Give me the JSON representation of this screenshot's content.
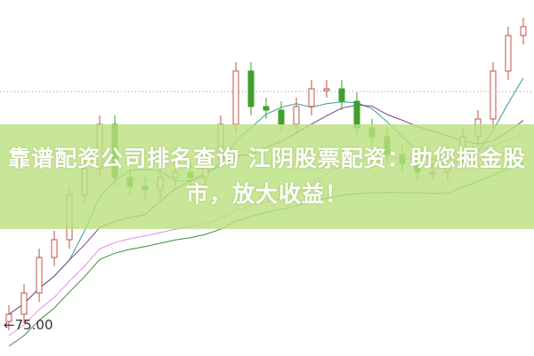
{
  "banner": {
    "title": "靠谱配资公司排名查询 江阴股票配资：助您掘金股市，放大收益！"
  },
  "chart_data": {
    "type": "candlestick",
    "annotations": [
      {
        "text": "←75.00",
        "value": 75.0
      }
    ],
    "closes": [
      75.7,
      76.9,
      78.9,
      79.9,
      82.4,
      83.9,
      86.4,
      83.4,
      82.9,
      82.7,
      83.4,
      83.7,
      83.4,
      84.4,
      86.4,
      89.4,
      87.4,
      87.2,
      86.4,
      87.4,
      88.4,
      88.4,
      87.7,
      86.2,
      85.7,
      84.7,
      84.2,
      83.7,
      83.7,
      84.7,
      85.7,
      86.7,
      89.4,
      91.4,
      91.9
    ],
    "moving_averages": [
      {
        "period": 5,
        "color": "#2aa198"
      },
      {
        "period": 10,
        "color": "#7a3e8e"
      },
      {
        "period": 20,
        "color": "#e08ee0"
      },
      {
        "period": 30,
        "color": "#3c8c3c"
      }
    ],
    "colors": {
      "up": "#c0504d",
      "down": "#3fa02a"
    },
    "grid": "dotted horizontal"
  }
}
